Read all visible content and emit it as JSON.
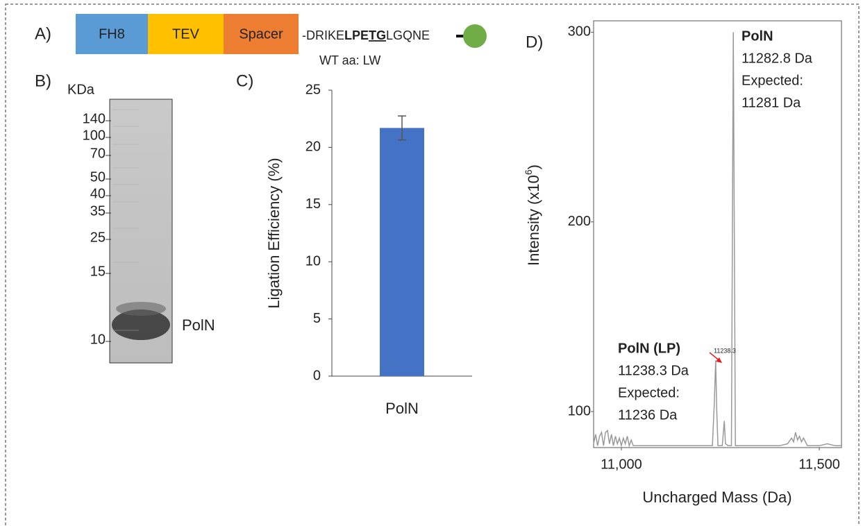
{
  "panel_a": {
    "label": "A)",
    "boxes": [
      {
        "text": "FH8",
        "color": "#5b9bd5"
      },
      {
        "text": "TEV",
        "color": "#ffc000"
      },
      {
        "text": "Spacer",
        "color": "#ed7d31"
      }
    ],
    "sequence": [
      "-DRIKE",
      "LPE",
      "TG",
      "LGQNE"
    ],
    "wt": "WT aa: LW"
  },
  "panel_b": {
    "label": "B)",
    "unit": "KDa",
    "markers": [
      "140",
      "100",
      "70",
      "50",
      "40",
      "35",
      "25",
      "15",
      "10"
    ],
    "band": "PolN"
  },
  "chart_data": [
    {
      "type": "bar",
      "label": "C)",
      "ylabel": "Ligation Efficiency (%)",
      "categories": [
        "PolN"
      ],
      "values": [
        21.7
      ],
      "errors": [
        1.05
      ],
      "color": "#4472c4",
      "ylim": [
        0,
        25
      ],
      "yticks": [
        0,
        5,
        10,
        15,
        20,
        25
      ]
    },
    {
      "type": "line",
      "label": "D)",
      "xlabel": "Uncharged Mass (Da)",
      "ylabel": [
        "Intensity (x10",
        "6",
        ")"
      ],
      "x": [
        10930,
        10935,
        10940,
        10945,
        10950,
        10955,
        10960,
        10965,
        10970,
        10975,
        10980,
        10985,
        10990,
        10995,
        11000,
        11005,
        11010,
        11015,
        11020,
        11025,
        11030,
        11040,
        11060,
        11100,
        11150,
        11200,
        11230,
        11235,
        11238.3,
        11241,
        11244,
        11255,
        11260,
        11263,
        11270,
        11278,
        11282.8,
        11288,
        11300,
        11350,
        11400,
        11420,
        11430,
        11435,
        11440,
        11445,
        11450,
        11455,
        11460,
        11470,
        11500,
        11520,
        11540,
        11556
      ],
      "series": [
        {
          "color": "#999999",
          "values": [
            83,
            88,
            82,
            87,
            89,
            82,
            89,
            90,
            83,
            88,
            82,
            87,
            83,
            86,
            82,
            86,
            83,
            87,
            82,
            85,
            82,
            82,
            82,
            82,
            82,
            82,
            82,
            105,
            127,
            100,
            82,
            82,
            95,
            83,
            82,
            82,
            300,
            82,
            82,
            82,
            82,
            83,
            86,
            84,
            89,
            85,
            87,
            84,
            86,
            82,
            82,
            83,
            82,
            82
          ]
        }
      ],
      "xlim": [
        10930,
        11556
      ],
      "xticks": [
        {
          "value": 11000,
          "label": "11,000"
        },
        {
          "value": 11500,
          "label": "11,500"
        }
      ],
      "ylim": [
        81,
        306
      ],
      "yticks": [
        100,
        200,
        300
      ],
      "peak_label": "11238.3",
      "annotations": [
        [
          "PolN",
          "11282.8 Da",
          "Expected:",
          "11281 Da"
        ],
        [
          "PolN (LP)",
          "11238.3 Da",
          "Expected:",
          "11236 Da"
        ]
      ]
    }
  ]
}
